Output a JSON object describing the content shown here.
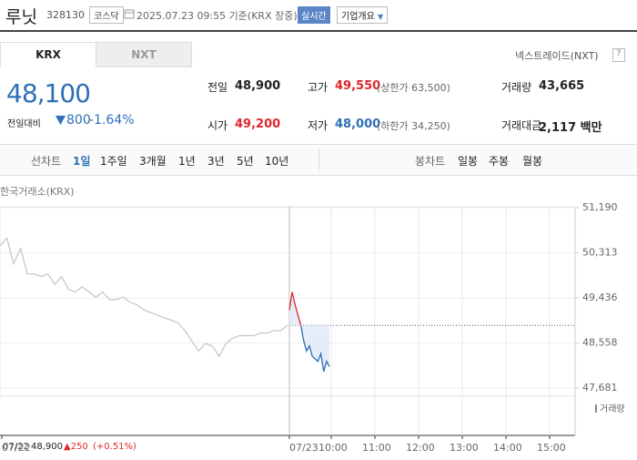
{
  "header": {
    "name": "루닛",
    "code": "328130",
    "market": "코스닥",
    "datetime": "2025.07.23 09:55 기준(KRX 장중)",
    "realtime": "실시간",
    "company_info": "기업개요"
  },
  "tabs": [
    "KRX",
    "NXT"
  ],
  "nxt_link": "넥스트레이드(NXT)",
  "help": "?",
  "price": {
    "current": "48,100",
    "change_label": "전일대비",
    "change": "800",
    "change_rate": "-1.64%"
  },
  "stats": [
    [
      {
        "label": "전일",
        "value": "48,900"
      },
      {
        "label": "고가",
        "value": "49,550",
        "note": "(상한가 63,500)"
      },
      {
        "label": "거래량",
        "value": "43,665"
      }
    ],
    [
      {
        "label": "시가",
        "value": "49,200"
      },
      {
        "label": "저가",
        "value": "48,000",
        "note": "(하한가 34,250)"
      },
      {
        "label": "거래대금",
        "value": "2,117 백만"
      }
    ]
  ],
  "periods": {
    "line_label": "선차트",
    "line": [
      "1일",
      "1주일",
      "3개월",
      "1년",
      "3년",
      "5년",
      "10년"
    ],
    "candle_label": "봉차트",
    "candle": [
      "일봉",
      "주봉",
      "월봉"
    ]
  },
  "chart": {
    "type": "line",
    "source": "한국거래소(KRX)",
    "ylim": [
      47681,
      51190
    ],
    "yticks": [
      {
        "value": 51190,
        "label": "51,190"
      },
      {
        "value": 50313,
        "label": "50,313"
      },
      {
        "value": 49436,
        "label": "49,436"
      },
      {
        "value": 48558,
        "label": "48,558"
      },
      {
        "value": 47681,
        "label": "47,681"
      }
    ],
    "reference": 48900,
    "prev_day": [
      50450,
      50600,
      50100,
      50400,
      49900,
      49900,
      49850,
      49900,
      49700,
      49850,
      49600,
      49550,
      49650,
      49550,
      49450,
      49550,
      49400,
      49400,
      49450,
      49350,
      49300,
      49200,
      49150,
      49100,
      49050,
      49000,
      48950,
      48800,
      48600,
      48400,
      48550,
      48500,
      48300,
      48550,
      48650,
      48700,
      48700,
      48700,
      48750,
      48750,
      48800,
      48800,
      48900
    ],
    "today": [
      49200,
      49550,
      49300,
      49100,
      48900,
      48600,
      48400,
      48500,
      48300,
      48250,
      48200,
      48350,
      48000,
      48200,
      48100
    ],
    "x_labels": [
      "07/22",
      "07/23",
      "10:00",
      "11:00",
      "12:00",
      "13:00",
      "14:00",
      "15:00"
    ],
    "volume_legend": "거래량",
    "prev_day_color": "#c4c4c4",
    "up_color": "#e0262b",
    "down_color": "#2e6fb7"
  },
  "footer": {
    "date": "07/22",
    "close": "48,900",
    "change": "▲250",
    "rate": "(+0.51%)"
  }
}
